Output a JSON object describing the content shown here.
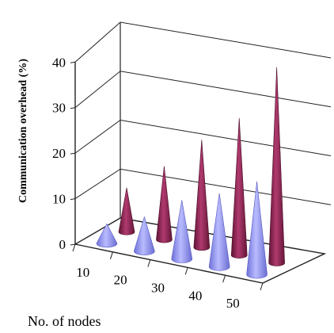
{
  "chart_data": {
    "type": "bar",
    "style": "3d-cone",
    "title": "",
    "xlabel": "No. of nodes",
    "ylabel": "Communication overhead (%)",
    "categories": [
      "10",
      "20",
      "30",
      "40",
      "50"
    ],
    "ylim": [
      0,
      40
    ],
    "yticks": [
      "0",
      "10",
      "20",
      "30",
      "40"
    ],
    "grid": true,
    "legend": "none",
    "series": [
      {
        "color": "#9a9cf5",
        "values": [
          4,
          7,
          12,
          15,
          19
        ]
      },
      {
        "color": "#8e2654",
        "values": [
          9,
          15,
          22,
          28,
          40
        ]
      }
    ]
  }
}
